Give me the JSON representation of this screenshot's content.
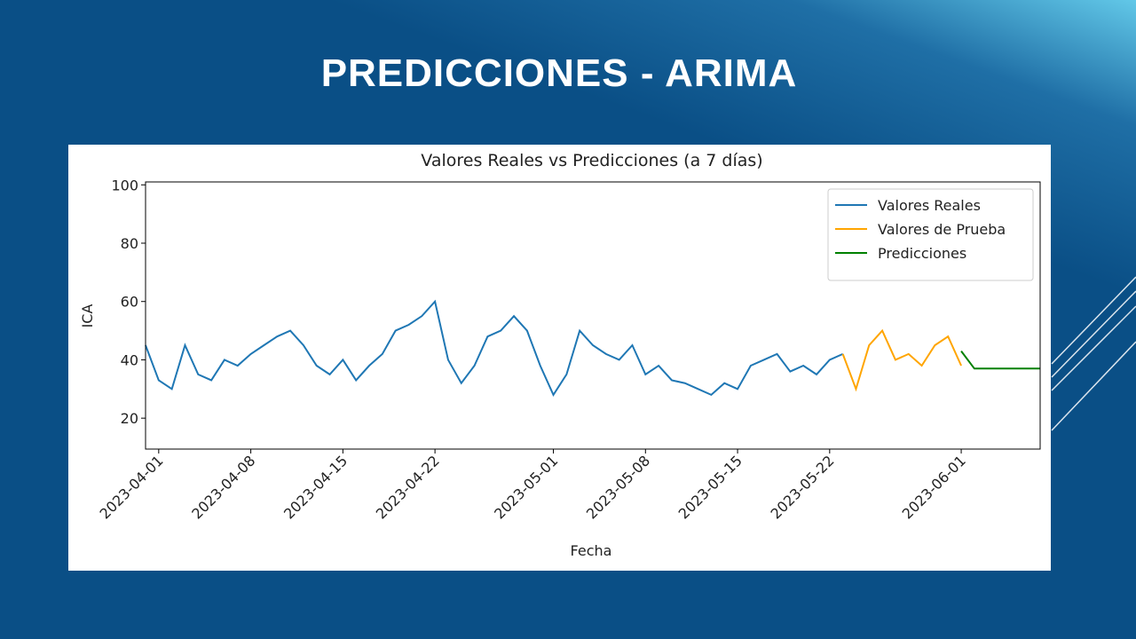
{
  "slide_title": "PREDICCIONES - ARIMA",
  "chart_data": {
    "type": "line",
    "title": "Valores Reales vs Predicciones (a 7 días)",
    "x_label": "Fecha",
    "y_label": "ICA",
    "xlim": [
      "2023-03-31",
      "2023-06-07"
    ],
    "ylim": [
      9.4,
      101
    ],
    "xticks": [
      "2023-04-01",
      "2023-04-08",
      "2023-04-15",
      "2023-04-22",
      "2023-05-01",
      "2023-05-08",
      "2023-05-15",
      "2023-05-22",
      "2023-06-01"
    ],
    "yticks": [
      20,
      40,
      60,
      80,
      100
    ],
    "legend": "upper right",
    "series": [
      {
        "name": "Valores Reales",
        "color": "#1f77b4",
        "x": [
          "2023-03-31",
          "2023-04-01",
          "2023-04-02",
          "2023-04-03",
          "2023-04-04",
          "2023-04-05",
          "2023-04-06",
          "2023-04-07",
          "2023-04-08",
          "2023-04-09",
          "2023-04-10",
          "2023-04-11",
          "2023-04-12",
          "2023-04-13",
          "2023-04-14",
          "2023-04-15",
          "2023-04-16",
          "2023-04-17",
          "2023-04-18",
          "2023-04-19",
          "2023-04-20",
          "2023-04-21",
          "2023-04-22",
          "2023-04-23",
          "2023-04-24",
          "2023-04-25",
          "2023-04-26",
          "2023-04-27",
          "2023-04-28",
          "2023-04-29",
          "2023-04-30",
          "2023-05-01",
          "2023-05-02",
          "2023-05-03",
          "2023-05-04",
          "2023-05-05",
          "2023-05-06",
          "2023-05-07",
          "2023-05-08",
          "2023-05-09",
          "2023-05-10",
          "2023-05-11",
          "2023-05-12",
          "2023-05-13",
          "2023-05-14",
          "2023-05-15",
          "2023-05-16",
          "2023-05-17",
          "2023-05-18",
          "2023-05-19",
          "2023-05-20",
          "2023-05-21",
          "2023-05-22",
          "2023-05-23"
        ],
        "values": [
          45,
          33,
          30,
          45,
          35,
          33,
          40,
          38,
          42,
          45,
          48,
          50,
          45,
          38,
          35,
          40,
          33,
          38,
          42,
          50,
          52,
          55,
          60,
          40,
          32,
          38,
          48,
          50,
          55,
          50,
          38,
          28,
          35,
          50,
          45,
          42,
          40,
          45,
          35,
          38,
          33,
          32,
          30,
          28,
          32,
          30,
          38,
          40,
          42,
          36,
          38,
          35,
          40,
          42
        ]
      },
      {
        "name": "Valores de Prueba",
        "color": "#ffa500",
        "x": [
          "2023-05-23",
          "2023-05-24",
          "2023-05-25",
          "2023-05-26",
          "2023-05-27",
          "2023-05-28",
          "2023-05-29",
          "2023-05-30",
          "2023-05-31",
          "2023-06-01"
        ],
        "values": [
          42,
          30,
          45,
          50,
          40,
          42,
          38,
          45,
          48,
          38
        ]
      },
      {
        "name": "Predicciones",
        "color": "#008000",
        "x": [
          "2023-06-01",
          "2023-06-02",
          "2023-06-03",
          "2023-06-04",
          "2023-06-05",
          "2023-06-06",
          "2023-06-07"
        ],
        "values": [
          43,
          37,
          37,
          37,
          37,
          37,
          37
        ]
      }
    ]
  }
}
